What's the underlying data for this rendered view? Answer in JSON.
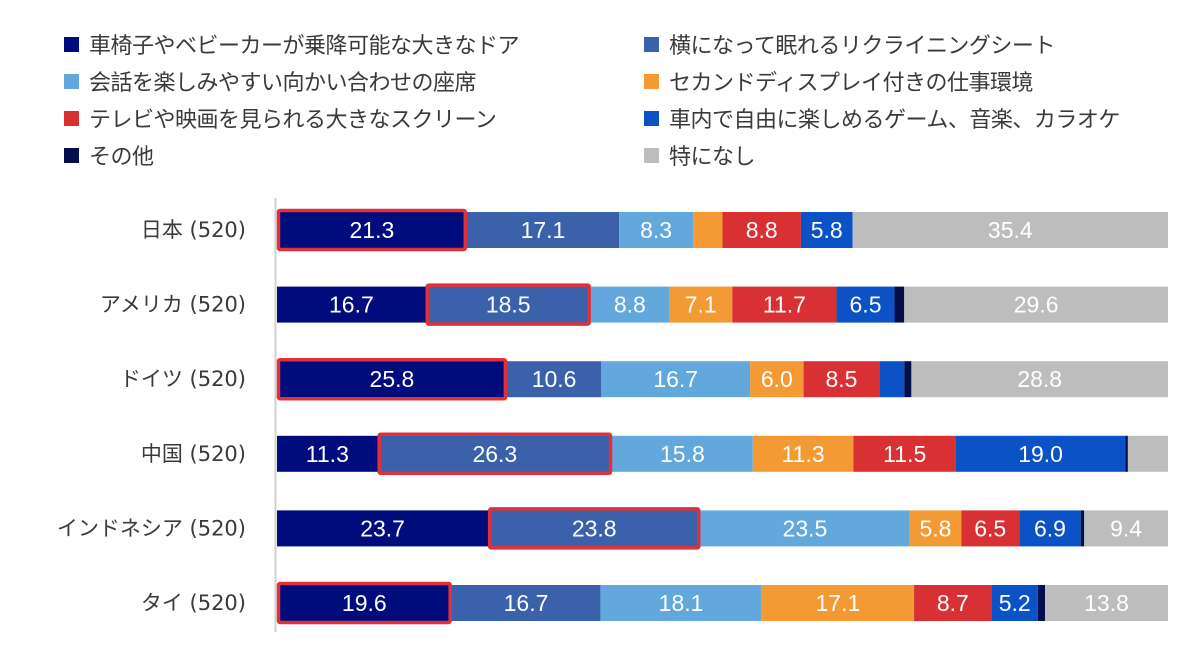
{
  "chart_data": {
    "type": "bar",
    "orientation": "horizontal",
    "stacked": true,
    "percent_stacked": true,
    "title": "",
    "xlabel": "",
    "ylabel": "",
    "xlim": [
      0,
      100
    ],
    "grid": false,
    "legend_position": "top",
    "categories": [
      "日本 (520)",
      "アメリカ (520)",
      "ドイツ (520)",
      "中国 (520)",
      "インドネシア (520)",
      "タイ (520)"
    ],
    "series": [
      {
        "name": "車椅子やベビーカーが乗降可能な大きなドア",
        "color": "#000c7b",
        "values": [
          21.3,
          16.7,
          25.8,
          11.3,
          23.7,
          19.6
        ],
        "labels": [
          "21.3",
          "16.7",
          "25.8",
          "11.3",
          "23.7",
          "19.6"
        ]
      },
      {
        "name": "横になって眠れるリクライニングシート",
        "color": "#3b61ab",
        "values": [
          17.1,
          18.5,
          10.6,
          26.3,
          23.8,
          16.7
        ],
        "labels": [
          "17.1",
          "18.5",
          "10.6",
          "26.3",
          "23.8",
          "16.7"
        ]
      },
      {
        "name": "会話を楽しみやすい向かい合わせの座席",
        "color": "#62a8dc",
        "values": [
          8.3,
          8.8,
          16.7,
          15.8,
          23.5,
          18.1
        ],
        "labels": [
          "8.3",
          "8.8",
          "16.7",
          "15.8",
          "23.5",
          "18.1"
        ]
      },
      {
        "name": "セカンドディスプレイ付きの仕事環境",
        "color": "#f39a35",
        "values": [
          3.3,
          7.1,
          6.0,
          11.3,
          5.8,
          17.1
        ],
        "labels": [
          "",
          "7.1",
          "6.0",
          "11.3",
          "5.8",
          "17.1"
        ]
      },
      {
        "name": "テレビや映画を見られる大きなスクリーン",
        "color": "#d93033",
        "values": [
          8.8,
          11.7,
          8.5,
          11.5,
          6.5,
          8.7
        ],
        "labels": [
          "8.8",
          "11.7",
          "8.5",
          "11.5",
          "6.5",
          "8.7"
        ]
      },
      {
        "name": "車内で自由に楽しめるゲーム、音楽、カラオケ",
        "color": "#0b52c6",
        "values": [
          5.8,
          6.5,
          2.8,
          19.0,
          6.9,
          5.2
        ],
        "labels": [
          "5.8",
          "6.5",
          "",
          "19.0",
          "6.9",
          "5.2"
        ]
      },
      {
        "name": "その他",
        "color": "#050e4b",
        "values": [
          0.0,
          1.1,
          0.8,
          0.3,
          0.4,
          0.8
        ],
        "labels": [
          "",
          "",
          "",
          "",
          "",
          ""
        ]
      },
      {
        "name": "特になし",
        "color": "#bdbdbd",
        "values": [
          35.4,
          29.6,
          28.8,
          4.5,
          9.4,
          13.8
        ],
        "labels": [
          "35.4",
          "29.6",
          "28.8",
          "",
          "9.4",
          "13.8"
        ]
      }
    ],
    "highlights": [
      {
        "category": "日本 (520)",
        "series": "車椅子やベビーカーが乗降可能な大きなドア",
        "color": "#e0303a"
      },
      {
        "category": "アメリカ (520)",
        "series": "横になって眠れるリクライニングシート",
        "color": "#e0303a"
      },
      {
        "category": "ドイツ (520)",
        "series": "車椅子やベビーカーが乗降可能な大きなドア",
        "color": "#e0303a"
      },
      {
        "category": "中国 (520)",
        "series": "横になって眠れるリクライニングシート",
        "color": "#e0303a"
      },
      {
        "category": "インドネシア (520)",
        "series": "横になって眠れるリクライニングシート",
        "color": "#e0303a"
      },
      {
        "category": "タイ (520)",
        "series": "車椅子やベビーカーが乗降可能な大きなドア",
        "color": "#e0303a"
      }
    ],
    "legend_order": [
      "車椅子やベビーカーが乗降可能な大きなドア",
      "横になって眠れるリクライニングシート",
      "会話を楽しみやすい向かい合わせの座席",
      "セカンドディスプレイ付きの仕事環境",
      "テレビや映画を見られる大きなスクリーン",
      "車内で自由に楽しめるゲーム、音楽、カラオケ",
      "その他",
      "特になし"
    ]
  }
}
